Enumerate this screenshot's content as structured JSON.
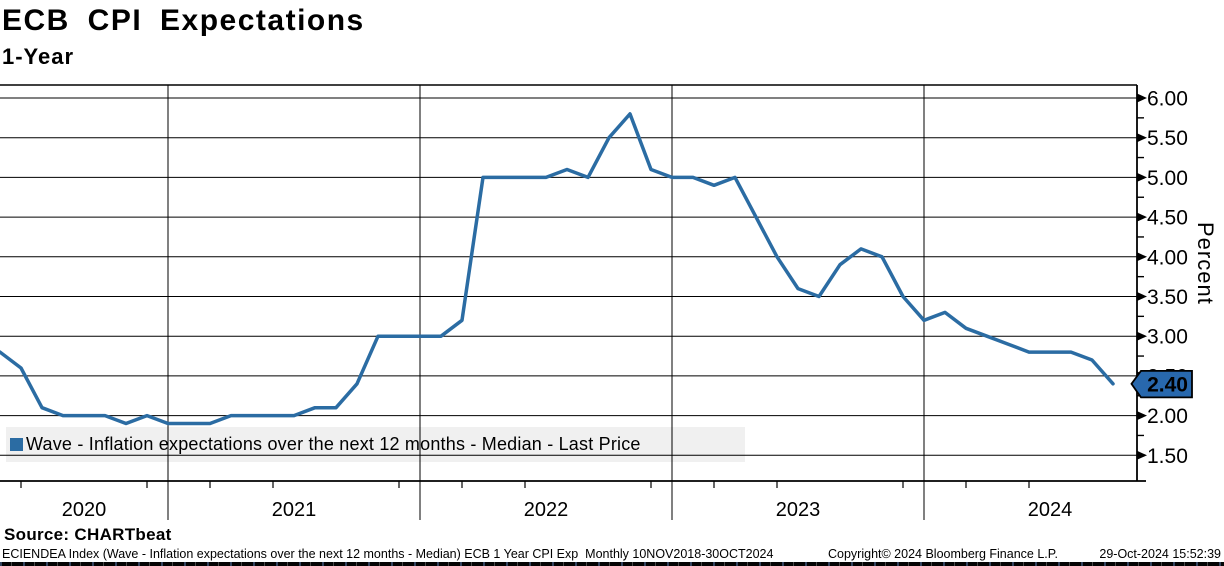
{
  "title": "ECB CPI Expectations",
  "subtitle": "1-Year",
  "y_axis": {
    "label": "Percent",
    "ticks": [
      "6.00",
      "5.50",
      "5.00",
      "4.50",
      "4.00",
      "3.50",
      "3.00",
      "2.50",
      "2.00",
      "1.50"
    ],
    "max": 6.0,
    "min": 1.5,
    "step": 0.5
  },
  "x_axis": {
    "years": [
      "2020",
      "2021",
      "2022",
      "2023",
      "2024"
    ]
  },
  "legend": {
    "text": "Wave - Inflation expectations over the next 12 months - Median - Last Price"
  },
  "last_price": {
    "value": "2.40"
  },
  "source": "Source: CHARTbeat",
  "footer": {
    "left": "ECIENDEA Index (Wave - Inflation expectations over the next 12 months - Median) ECB 1 Year CPI Exp  Monthly 10NOV2018-30OCT2024",
    "copyright": "Copyright© 2024 Bloomberg Finance L.P.",
    "datetime": "29-Oct-2024 15:52:39"
  },
  "colors": {
    "line": "#2b6ca3",
    "tag_bg": "#2868ad",
    "tag_text": "#ffffff",
    "legend_band": "#f0f0f0",
    "grid": "#000000"
  },
  "chart_data": {
    "type": "line",
    "title": "ECB CPI Expectations 1-Year",
    "series_name": "ECIENDEA Index - Inflation expectations over the next 12 months - Median",
    "frequency": "monthly",
    "x_start": "2020-05",
    "x_end": "2024-10",
    "x_step": "1 month",
    "values": [
      2.8,
      2.6,
      2.1,
      2.0,
      2.0,
      2.0,
      1.9,
      2.0,
      1.9,
      1.9,
      1.9,
      2.0,
      2.0,
      2.0,
      2.0,
      2.1,
      2.1,
      2.4,
      3.0,
      3.0,
      3.0,
      3.0,
      3.2,
      5.0,
      5.0,
      5.0,
      5.0,
      5.1,
      5.0,
      5.5,
      5.8,
      5.1,
      5.0,
      5.0,
      4.9,
      5.0,
      4.5,
      4.0,
      3.6,
      3.5,
      3.9,
      4.1,
      4.0,
      3.5,
      3.2,
      3.3,
      3.1,
      3.0,
      2.9,
      2.8,
      2.8,
      2.8,
      2.7,
      2.4
    ],
    "last_value": 2.4,
    "ylabel": "Percent",
    "ylim": [
      1.5,
      6.0
    ],
    "grid": true,
    "legend_position": "bottom-left"
  }
}
